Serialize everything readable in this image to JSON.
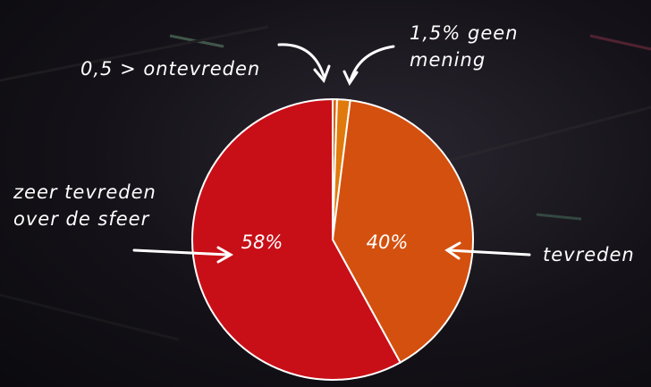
{
  "chart_data": {
    "type": "pie",
    "categories": [
      "0,5 > ontevreden",
      "1,5% geen mening",
      "tevreden",
      "zeer tevreden over de sfeer"
    ],
    "values": [
      0.5,
      1.5,
      40,
      58
    ],
    "value_labels": [
      null,
      null,
      "40%",
      "58%"
    ],
    "colors": [
      "#d9620f",
      "#e07a0c",
      "#d4500f",
      "#c80f17"
    ]
  }
}
